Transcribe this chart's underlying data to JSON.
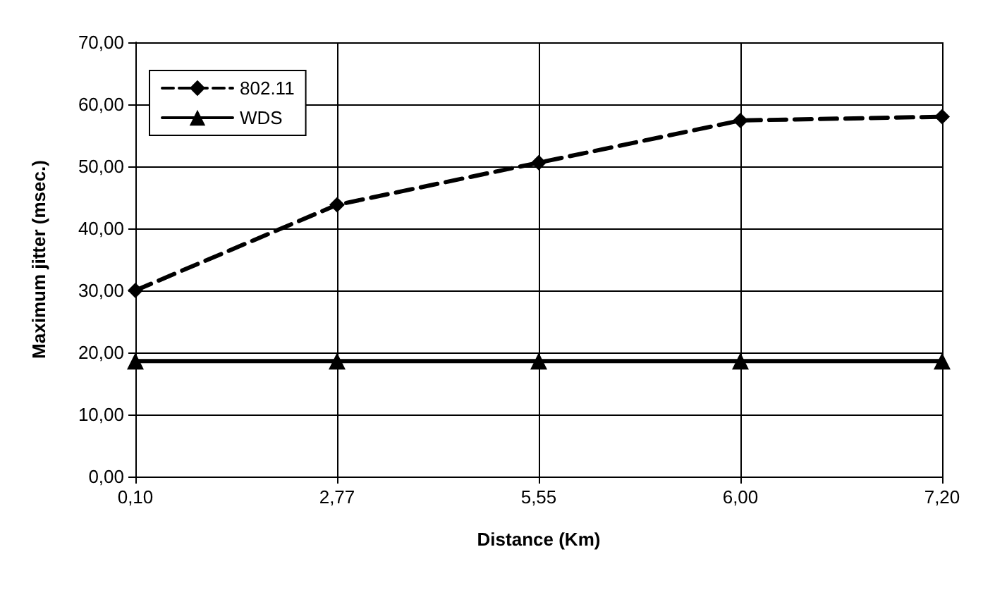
{
  "chart_data": {
    "type": "line",
    "xlabel": "Distance (Km)",
    "ylabel": "Maximum jitter (msec.)",
    "categories": [
      "0,10",
      "2,77",
      "5,55",
      "6,00",
      "7,20"
    ],
    "series": [
      {
        "name": "802.11",
        "color": "#000000",
        "marker": "diamond",
        "line_style": "dashed",
        "values": [
          30.0,
          43.8,
          50.6,
          57.4,
          58.0
        ]
      },
      {
        "name": "WDS",
        "color": "#000000",
        "marker": "triangle",
        "line_style": "solid",
        "values": [
          18.6,
          18.6,
          18.6,
          18.6,
          18.6
        ]
      }
    ],
    "ylim": [
      0,
      70
    ],
    "yticks": [
      {
        "value": 0,
        "label": "0,00"
      },
      {
        "value": 10,
        "label": "10,00"
      },
      {
        "value": 20,
        "label": "20,00"
      },
      {
        "value": 30,
        "label": "30,00"
      },
      {
        "value": 40,
        "label": "40,00"
      },
      {
        "value": 50,
        "label": "50,00"
      },
      {
        "value": 60,
        "label": "60,00"
      },
      {
        "value": 70,
        "label": "70,00"
      }
    ],
    "grid": true,
    "legend": "top left"
  }
}
